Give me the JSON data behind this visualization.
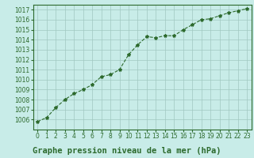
{
  "x": [
    0,
    1,
    2,
    3,
    4,
    5,
    6,
    7,
    8,
    9,
    10,
    11,
    12,
    13,
    14,
    15,
    16,
    17,
    18,
    19,
    20,
    21,
    22,
    23
  ],
  "y": [
    1005.8,
    1006.2,
    1007.2,
    1008.0,
    1008.6,
    1009.0,
    1009.5,
    1010.3,
    1010.5,
    1011.0,
    1012.5,
    1013.5,
    1014.3,
    1014.2,
    1014.4,
    1014.4,
    1015.0,
    1015.5,
    1016.0,
    1016.1,
    1016.4,
    1016.7,
    1016.9,
    1017.1
  ],
  "line_color": "#2d6a2d",
  "marker": "*",
  "marker_color": "#2d6a2d",
  "bg_color": "#c8ece8",
  "grid_color": "#a0c8c0",
  "title": "Graphe pression niveau de la mer (hPa)",
  "xlabel": "",
  "ylabel": "",
  "ylim": [
    1005,
    1017.5
  ],
  "xlim": [
    -0.5,
    23.5
  ],
  "yticks": [
    1006,
    1007,
    1008,
    1009,
    1010,
    1011,
    1012,
    1013,
    1014,
    1015,
    1016,
    1017
  ],
  "xticks": [
    0,
    1,
    2,
    3,
    4,
    5,
    6,
    7,
    8,
    9,
    10,
    11,
    12,
    13,
    14,
    15,
    16,
    17,
    18,
    19,
    20,
    21,
    22,
    23
  ],
  "title_fontsize": 7.5,
  "tick_fontsize": 5.5,
  "title_color": "#2d6a2d",
  "tick_color": "#2d6a2d",
  "spine_color": "#2d6a2d"
}
